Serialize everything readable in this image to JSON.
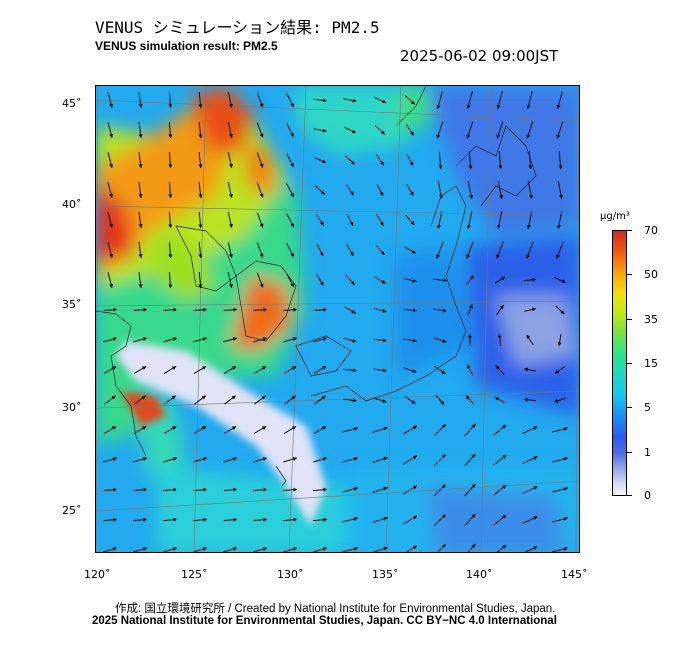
{
  "header": {
    "title_jp": "VENUS シミュレーション結果: PM2.5",
    "title_en": "VENUS simulation result: PM2.5",
    "timestamp": "2025-06-02 09:00JST"
  },
  "map": {
    "lat_labels": [
      "45˚",
      "40˚",
      "35˚",
      "30˚",
      "25˚"
    ],
    "lon_labels": [
      "120˚",
      "125˚",
      "130˚",
      "135˚",
      "140˚",
      "145˚"
    ],
    "field": "PM2.5 concentration with wind vectors"
  },
  "colorbar": {
    "unit": "μg/m³",
    "labels": [
      "70",
      "50",
      "35",
      "15",
      "5",
      "1",
      "0"
    ],
    "colors": [
      "#d02a1a",
      "#f7a50d",
      "#c0e81d",
      "#2fe58a",
      "#17c8ee",
      "#2d5bf0",
      "#f6f6fb"
    ]
  },
  "footer": {
    "credit": "作成: 国立環境研究所 / Created by National Institute for Environmental Studies, Japan.",
    "copyright": "2025 National Institute for Environmental Studies, Japan. CC BY−NC 4.0 International"
  }
}
